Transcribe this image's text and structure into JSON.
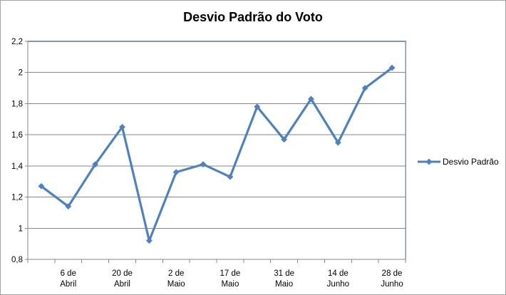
{
  "title": "Desvio Padrão do Voto",
  "chart_data": {
    "type": "line",
    "title": "Desvio Padrão do Voto",
    "categories": [
      "",
      "6 de\nAbril",
      "",
      "20 de\nAbril",
      "",
      "2 de\nMaio",
      "",
      "17 de\nMaio",
      "",
      "31 de\nMaio",
      "",
      "14 de\nJunho",
      "",
      "28 de\nJunho"
    ],
    "series": [
      {
        "name": "Desvio Padrão",
        "color": "#4f81bd",
        "marker": "diamond",
        "values": [
          1.27,
          1.14,
          1.41,
          1.65,
          0.92,
          1.36,
          1.41,
          1.33,
          1.78,
          1.57,
          1.83,
          1.55,
          1.9,
          2.03
        ]
      }
    ],
    "ylim": [
      0.8,
      2.2
    ],
    "y_ticks": [
      {
        "value": 2.2,
        "label": "2,2"
      },
      {
        "value": 2.0,
        "label": "2"
      },
      {
        "value": 1.8,
        "label": "1,8"
      },
      {
        "value": 1.6,
        "label": "1,6"
      },
      {
        "value": 1.4,
        "label": "1,4"
      },
      {
        "value": 1.2,
        "label": "1,2"
      },
      {
        "value": 1.0,
        "label": "1"
      },
      {
        "value": 0.8,
        "label": "0,8"
      }
    ],
    "grid": "horizontal",
    "legend_position": "right",
    "colors": {
      "gridline": "#878787",
      "axis": "#878787",
      "plot_border": "#7a96bc",
      "text": "#000000",
      "frame_border": "#a3a3a3"
    }
  }
}
